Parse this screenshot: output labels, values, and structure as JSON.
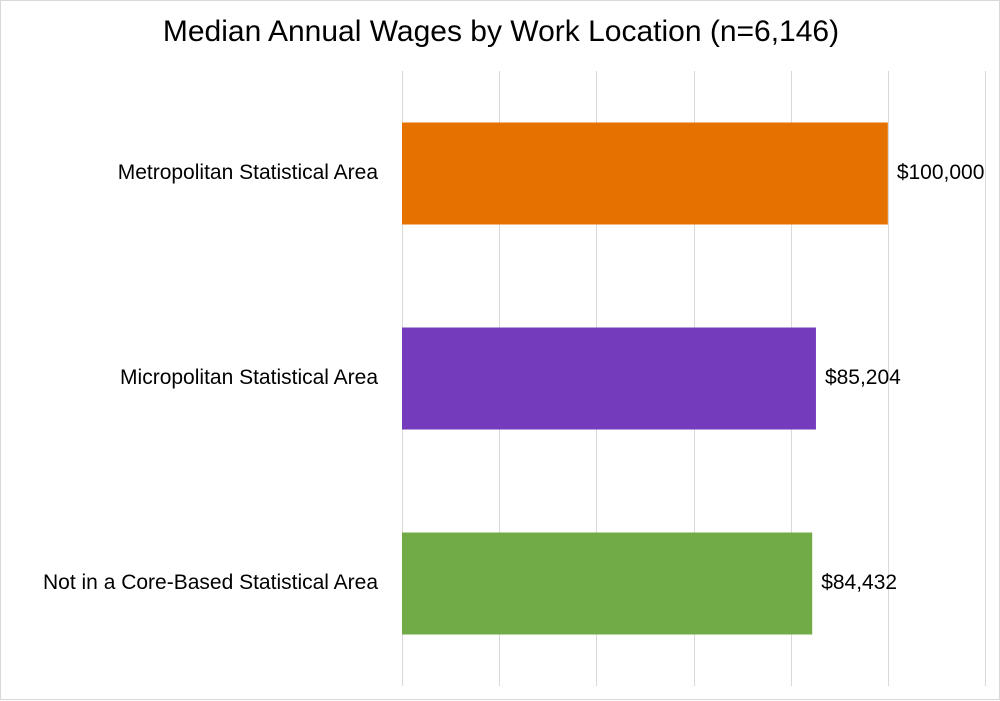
{
  "chart_data": {
    "type": "bar",
    "orientation": "horizontal",
    "title": "Median Annual Wages by Work Location (n=6,146)",
    "categories": [
      "Metropolitan Statistical Area",
      "Micropolitan Statistical Area",
      "Not in a Core-Based Statistical Area"
    ],
    "values": [
      100000,
      85204,
      84432
    ],
    "value_labels": [
      "$100,000",
      "$85,204",
      "$84,432"
    ],
    "colors": [
      "#E57200",
      "#753BBD",
      "#71AB48"
    ],
    "xlim": [
      0,
      120000
    ],
    "grid": true,
    "gridline_color": "#d9d9d9",
    "x_tick_labels_shown": false,
    "legend": "none"
  }
}
